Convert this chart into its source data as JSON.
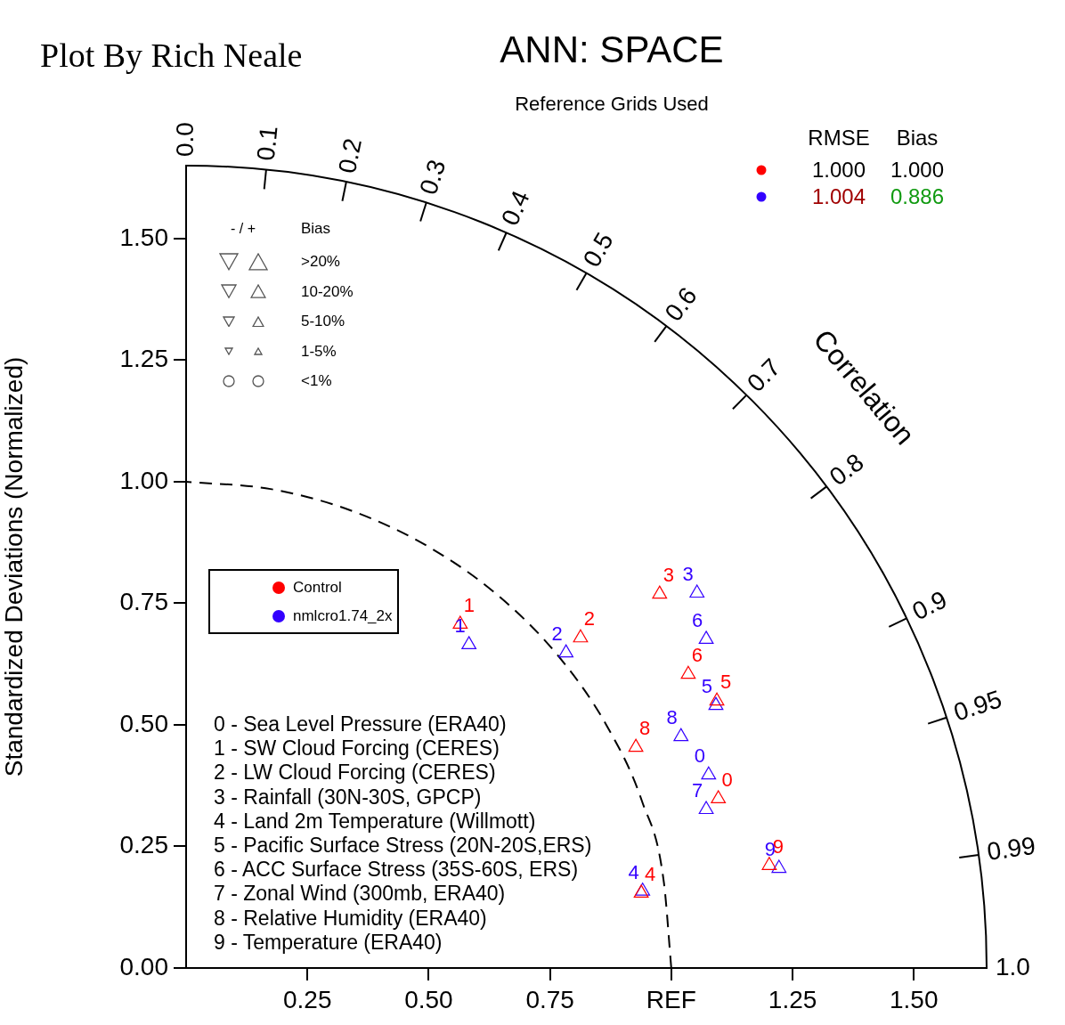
{
  "chart_data": {
    "type": "scatter",
    "title": "ANN: SPACE",
    "subtitle": "Reference Grids Used",
    "ylabel": "Standardized Deviations (Normalized)",
    "xlim": [
      0,
      1.65
    ],
    "ylim": [
      0,
      1.65
    ],
    "xticks": [
      {
        "value": 0.25,
        "label": "0.25"
      },
      {
        "value": 0.5,
        "label": "0.50"
      },
      {
        "value": 0.75,
        "label": "0.75"
      },
      {
        "value": 1,
        "label": "REF"
      },
      {
        "value": 1.25,
        "label": "1.25"
      },
      {
        "value": 1.5,
        "label": "1.50"
      }
    ],
    "yticks": [
      {
        "value": 0,
        "label": "0.00"
      },
      {
        "value": 0.25,
        "label": "0.25"
      },
      {
        "value": 0.5,
        "label": "0.50"
      },
      {
        "value": 0.75,
        "label": "0.75"
      },
      {
        "value": 1,
        "label": "1.00"
      },
      {
        "value": 1.25,
        "label": "1.25"
      },
      {
        "value": 1.5,
        "label": "1.50"
      }
    ],
    "grid": false,
    "legend": "center left",
    "marker": "triangle",
    "series": [
      {
        "name": "Control",
        "color": "#ff0000",
        "x": [
          1.097,
          0.565,
          0.813,
          0.976,
          0.938,
          1.094,
          1.035,
          null,
          0.927,
          1.202
        ],
        "values": [
          0.348,
          0.707,
          0.679,
          0.769,
          0.154,
          0.549,
          0.604,
          null,
          0.454,
          0.211
        ]
      },
      {
        "name": "nmlcro1.74_2x",
        "color": "#3300ff",
        "x": [
          1.077,
          0.583,
          0.783,
          1.053,
          0.941,
          1.092,
          1.072,
          1.072,
          1.02,
          1.222
        ],
        "values": [
          0.397,
          0.665,
          0.648,
          0.771,
          0.158,
          0.54,
          0.676,
          0.326,
          0.476,
          0.205
        ]
      },
      {
        "type": "line",
        "color": "#000000",
        "line_style": "dashed",
        "marker": "none",
        "x": [
          1,
          0.985,
          0.94,
          0.866,
          0.766,
          0.643,
          0.5,
          0.342,
          0.174,
          0
        ],
        "values": [
          0,
          0.174,
          0.342,
          0.5,
          0.643,
          0.766,
          0.866,
          0.94,
          0.985,
          1
        ]
      }
    ],
    "annotations": [
      "Plot By Rich Neale",
      "Correlation",
      "0 - Sea Level Pressure (ERA40)",
      "1 - SW Cloud Forcing (CERES)",
      "2 - LW Cloud Forcing (CERES)",
      "3 - Rainfall (30N-30S, GPCP)",
      "4 - Land 2m Temperature (Willmott)",
      "5 - Pacific Surface Stress (20N-20S,ERS)",
      "6 - ACC Surface Stress (35S-60S, ERS)",
      "7 - Zonal Wind (300mb, ERA40)",
      "8 - Relative Humidity (ERA40)",
      "9 - Temperature (ERA40)",
      "- / +",
      "Bias",
      ">20%",
      "10-20%",
      "5-10%",
      "1-5%",
      "<1%",
      "RMSE",
      "Bias",
      "1.000",
      "1.000",
      "1.004",
      "0.886",
      "0.0",
      "0.1",
      "0.2",
      "0.3",
      "0.4",
      "0.5",
      "0.6",
      "0.7",
      "0.8",
      "0.9",
      "0.95",
      "0.99",
      "1.0",
      {
        "text": "0",
        "x": 1.097,
        "y": 0.348
      },
      {
        "text": "1",
        "x": 0.565,
        "y": 0.707
      },
      {
        "text": "2",
        "x": 0.813,
        "y": 0.679
      },
      {
        "text": "3",
        "x": 0.976,
        "y": 0.769
      },
      {
        "text": "4",
        "x": 0.938,
        "y": 0.154
      },
      {
        "text": "5",
        "x": 1.094,
        "y": 0.549
      },
      {
        "text": "6",
        "x": 1.035,
        "y": 0.604
      },
      {
        "text": "8",
        "x": 0.927,
        "y": 0.454
      },
      {
        "text": "9",
        "x": 1.202,
        "y": 0.211
      },
      {
        "text": "0",
        "x": 1.077,
        "y": 0.397
      },
      {
        "text": "1",
        "x": 0.583,
        "y": 0.665
      },
      {
        "text": "2",
        "x": 0.783,
        "y": 0.648
      },
      {
        "text": "3",
        "x": 1.053,
        "y": 0.771
      },
      {
        "text": "4",
        "x": 0.941,
        "y": 0.158
      },
      {
        "text": "5",
        "x": 1.092,
        "y": 0.54
      },
      {
        "text": "6",
        "x": 1.072,
        "y": 0.676
      },
      {
        "text": "7",
        "x": 1.072,
        "y": 0.326
      },
      {
        "text": "8",
        "x": 1.02,
        "y": 0.476
      },
      {
        "text": "9",
        "x": 1.222,
        "y": 0.205
      }
    ]
  }
}
